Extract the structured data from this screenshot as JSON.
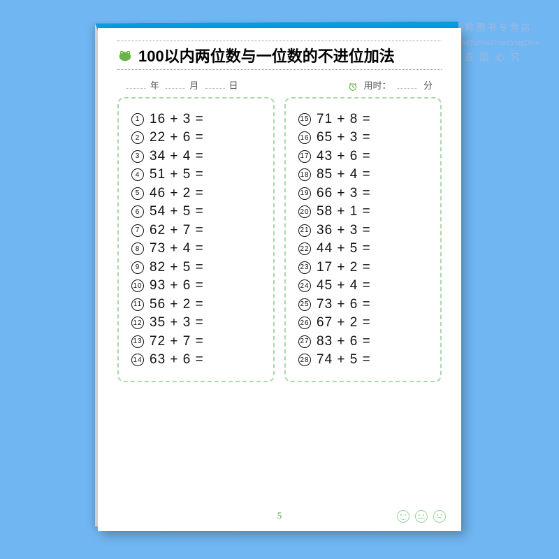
{
  "background_color": "#70b6f2",
  "page_color": "#ffffff",
  "accent_green": "#6bb34a",
  "dashed_border_color": "#a9d8a9",
  "top_binding_color": "#0a9de3",
  "watermark": {
    "line1": "新睢图书专营店",
    "pinyin": "XinHuiTuShuZhuanYingDian",
    "line2": "盗 图 必 究"
  },
  "title": "100以内两位数与一位数的不进位加法",
  "title_fontsize": 22,
  "date_labels": {
    "year": "年",
    "month": "月",
    "day": "日"
  },
  "time_label_prefix": "用时：",
  "time_label_suffix": "分",
  "problem_fontsize": 19,
  "circled_number_size": 18,
  "problems_font": "Arial",
  "left_column": [
    {
      "n": 1,
      "a": 16,
      "b": 3
    },
    {
      "n": 2,
      "a": 22,
      "b": 6
    },
    {
      "n": 3,
      "a": 34,
      "b": 4
    },
    {
      "n": 4,
      "a": 51,
      "b": 5
    },
    {
      "n": 5,
      "a": 46,
      "b": 2
    },
    {
      "n": 6,
      "a": 54,
      "b": 5
    },
    {
      "n": 7,
      "a": 62,
      "b": 7
    },
    {
      "n": 8,
      "a": 73,
      "b": 4
    },
    {
      "n": 9,
      "a": 82,
      "b": 5
    },
    {
      "n": 10,
      "a": 93,
      "b": 6
    },
    {
      "n": 11,
      "a": 56,
      "b": 2
    },
    {
      "n": 12,
      "a": 35,
      "b": 3
    },
    {
      "n": 13,
      "a": 72,
      "b": 7
    },
    {
      "n": 14,
      "a": 63,
      "b": 6
    }
  ],
  "right_column": [
    {
      "n": 15,
      "a": 71,
      "b": 8
    },
    {
      "n": 16,
      "a": 65,
      "b": 3
    },
    {
      "n": 17,
      "a": 43,
      "b": 6
    },
    {
      "n": 18,
      "a": 85,
      "b": 4
    },
    {
      "n": 19,
      "a": 66,
      "b": 3
    },
    {
      "n": 20,
      "a": 58,
      "b": 1
    },
    {
      "n": 21,
      "a": 36,
      "b": 3
    },
    {
      "n": 22,
      "a": 44,
      "b": 5
    },
    {
      "n": 23,
      "a": 17,
      "b": 2
    },
    {
      "n": 24,
      "a": 45,
      "b": 4
    },
    {
      "n": 25,
      "a": 73,
      "b": 6
    },
    {
      "n": 26,
      "a": 67,
      "b": 2
    },
    {
      "n": 27,
      "a": 83,
      "b": 6
    },
    {
      "n": 28,
      "a": 74,
      "b": 5
    }
  ],
  "page_number": "5",
  "faces": [
    "happy",
    "neutral",
    "sad"
  ]
}
